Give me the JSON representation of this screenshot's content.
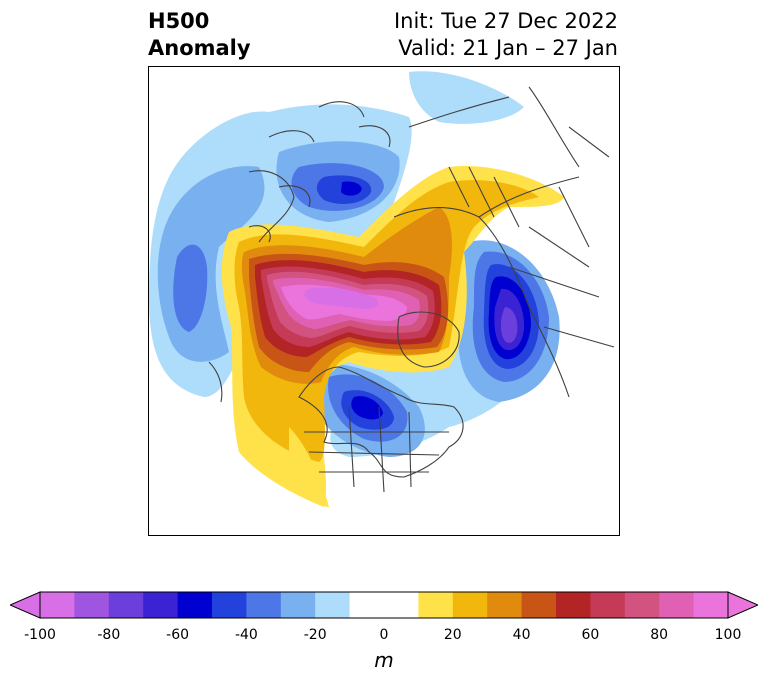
{
  "title": {
    "left_line1": "H500",
    "left_line2": "Anomaly",
    "right_line1": "Init: Tue 27 Dec 2022",
    "right_line2": "Valid: 21 Jan – 27 Jan"
  },
  "colorbar": {
    "unit": "m",
    "ticks": [
      "-100",
      "-80",
      "-60",
      "-40",
      "-20",
      "0",
      "20",
      "40",
      "60",
      "80",
      "100"
    ],
    "extend": "both",
    "colors": [
      "#d86fe6",
      "#a055e0",
      "#6b3fdc",
      "#3b22d3",
      "#0000d0",
      "#2342dc",
      "#4d77e6",
      "#79b0f0",
      "#aedcfb",
      "#ffffff",
      "#ffffff",
      "#ffe249",
      "#f2b70c",
      "#e08a0e",
      "#c85516",
      "#b32424",
      "#c53a57",
      "#d2537f",
      "#e061b3",
      "#ea74db"
    ]
  }
}
